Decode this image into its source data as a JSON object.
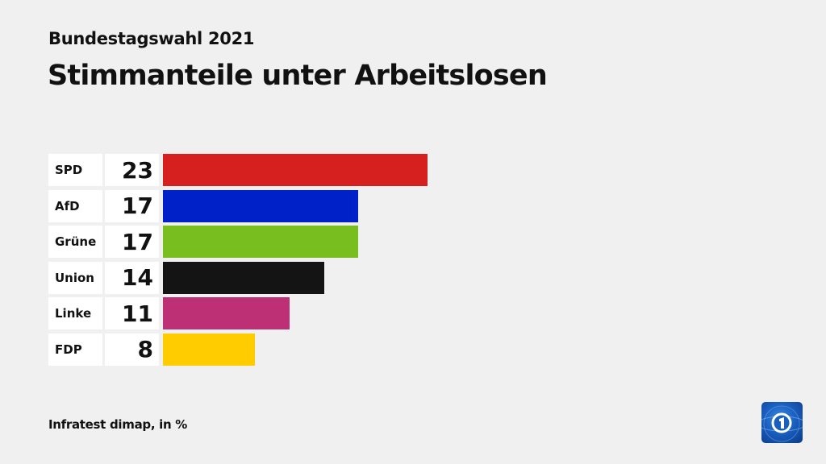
{
  "header": {
    "subtitle": "Bundestagswahl 2021",
    "title": "Stimmanteile unter Arbeitslosen"
  },
  "footer": {
    "source": "Infratest dimap, in %",
    "logo_icon": "tagesschau-logo-icon"
  },
  "bars": [
    {
      "label": "SPD",
      "value": "23",
      "color": "#d62020"
    },
    {
      "label": "AfD",
      "value": "17",
      "color": "#0021c8"
    },
    {
      "label": "Grüne",
      "value": "17",
      "color": "#78be1e"
    },
    {
      "label": "Union",
      "value": "14",
      "color": "#141414"
    },
    {
      "label": "Linke",
      "value": "11",
      "color": "#bd3075"
    },
    {
      "label": "FDP",
      "value": "8",
      "color": "#ffcc00"
    }
  ],
  "chart_data": {
    "type": "bar",
    "orientation": "horizontal",
    "title": "Stimmanteile unter Arbeitslosen",
    "subtitle": "Bundestagswahl 2021",
    "categories": [
      "SPD",
      "AfD",
      "Grüne",
      "Union",
      "Linke",
      "FDP"
    ],
    "values": [
      23,
      17,
      17,
      14,
      11,
      8
    ],
    "colors": [
      "#d62020",
      "#0021c8",
      "#78be1e",
      "#141414",
      "#bd3075",
      "#ffcc00"
    ],
    "xlabel": "",
    "ylabel": "",
    "unit": "%",
    "source": "Infratest dimap, in %",
    "grid": false,
    "legend": "none"
  }
}
